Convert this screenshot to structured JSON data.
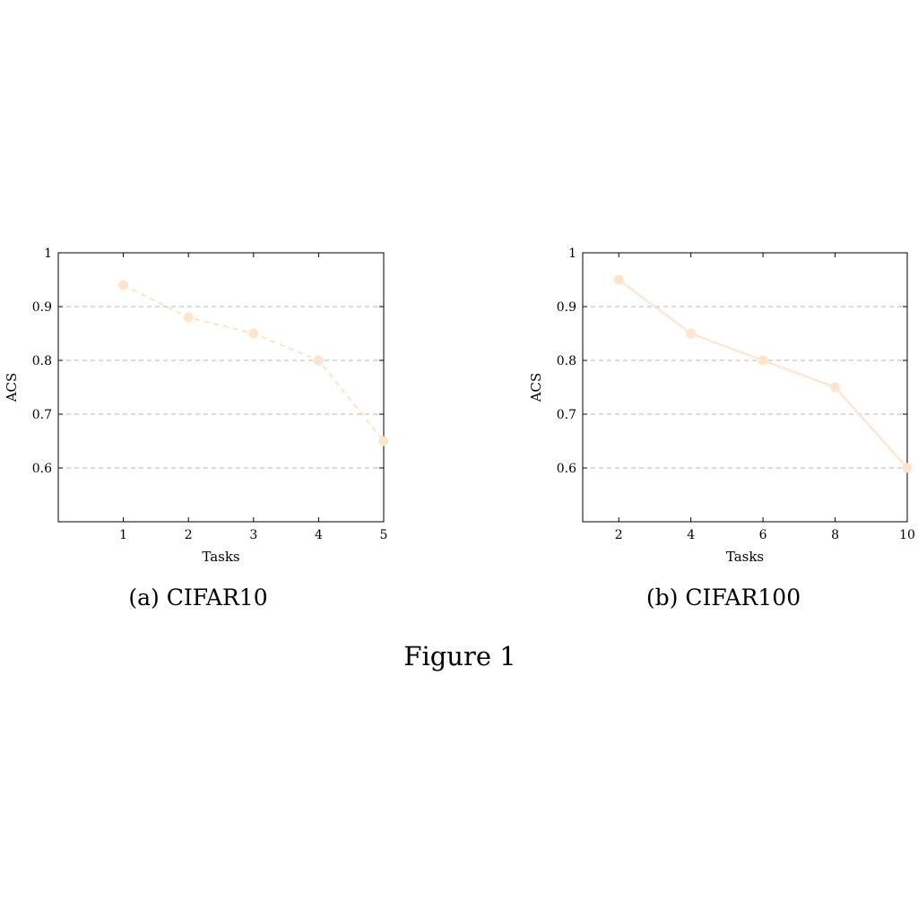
{
  "figure": {
    "caption": "Figure 1",
    "line_color": "#FFE4CC",
    "grid_color": "#B5B5B5"
  },
  "chart_data": [
    {
      "type": "line",
      "caption": "(a) CIFAR10",
      "xlabel": "Tasks",
      "ylabel": "ACS",
      "x": [
        1,
        2,
        3,
        4,
        5
      ],
      "series": [
        {
          "values": [
            0.94,
            0.88,
            0.85,
            0.8,
            0.65
          ],
          "line_style": "dashed",
          "marker": "circle"
        }
      ],
      "xlim": [
        0,
        5
      ],
      "ylim": [
        0.5,
        1.0
      ],
      "xticks": [
        1,
        2,
        3,
        4,
        5
      ],
      "xtick_labels": [
        "1",
        "2",
        "3",
        "4",
        "5"
      ],
      "yticks": [
        0.6,
        0.7,
        0.8,
        0.9,
        1.0
      ],
      "ytick_labels": [
        "0.6",
        "0.7",
        "0.8",
        "0.9",
        "1"
      ],
      "grid": "horizontal dashed"
    },
    {
      "type": "line",
      "caption": "(b) CIFAR100",
      "xlabel": "Tasks",
      "ylabel": "ACS",
      "x": [
        2,
        4,
        6,
        8,
        10
      ],
      "series": [
        {
          "values": [
            0.95,
            0.85,
            0.8,
            0.75,
            0.6
          ],
          "line_style": "solid",
          "marker": "circle"
        }
      ],
      "xlim": [
        1,
        10
      ],
      "ylim": [
        0.5,
        1.0
      ],
      "xticks": [
        2,
        4,
        6,
        8,
        10
      ],
      "xtick_labels": [
        "2",
        "4",
        "6",
        "8",
        "10"
      ],
      "yticks": [
        0.6,
        0.7,
        0.8,
        0.9,
        1.0
      ],
      "ytick_labels": [
        "0.6",
        "0.7",
        "0.8",
        "0.9",
        "1"
      ],
      "grid": "horizontal dashed"
    }
  ]
}
